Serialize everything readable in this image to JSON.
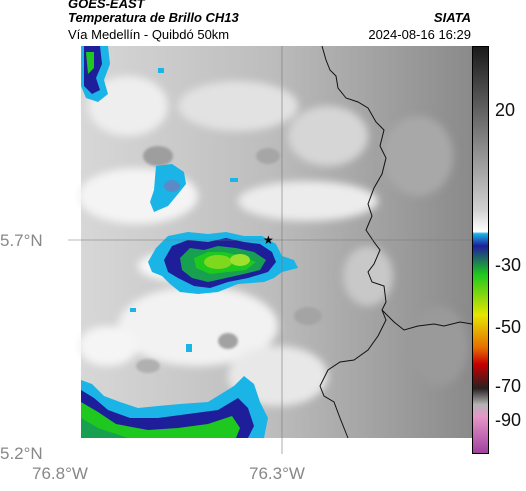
{
  "header": {
    "satellite": "GOES-EAST",
    "product": "Temperatura de Brillo CH13",
    "route": "Vía Medellín - Quibdó 50km",
    "org": "SIATA",
    "datetime": "2024-08-16 16:29"
  },
  "axes": {
    "y_ticks": [
      "5.7°N",
      "5.2°N"
    ],
    "x_ticks": [
      "76.8°W",
      "76.3°W"
    ]
  },
  "colorbar": {
    "ticks": [
      "20",
      "-30",
      "-50",
      "-70",
      "-90"
    ],
    "colors": {
      "gray_dark": "#2e2e2e",
      "gray_light": "#f2f2f2",
      "cyan": "#1ab4e6",
      "blue": "#1e1e9a",
      "green": "#1ec81e",
      "yellow": "#e6e600",
      "orange": "#e66e00",
      "red": "#c80000",
      "dark": "#282020",
      "pink": "#e696c8",
      "purple": "#a040a0"
    }
  },
  "marker": "star-marker"
}
